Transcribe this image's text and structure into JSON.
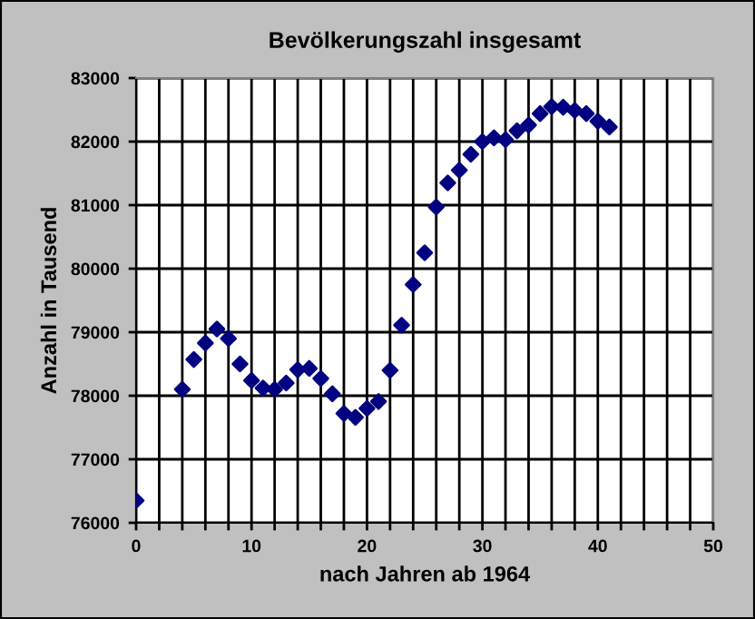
{
  "chart_data": {
    "type": "scatter",
    "title": "Bevölkerungszahl insgesamt",
    "xlabel": "nach Jahren ab 1964",
    "ylabel": "Anzahl in Tausend",
    "x": [
      0,
      4,
      5,
      6,
      7,
      8,
      9,
      10,
      11,
      12,
      13,
      14,
      15,
      16,
      17,
      18,
      19,
      20,
      21,
      22,
      23,
      24,
      25,
      26,
      27,
      28,
      29,
      30,
      31,
      32,
      33,
      34,
      35,
      36,
      37,
      38,
      39,
      40,
      41
    ],
    "series": [
      {
        "color": "#000080",
        "values": [
          76350,
          78100,
          78570,
          78830,
          79050,
          78900,
          78500,
          78240,
          78120,
          78100,
          78200,
          78410,
          78430,
          78270,
          78030,
          77720,
          77660,
          77800,
          77910,
          78400,
          79110,
          79750,
          80250,
          80970,
          81350,
          81550,
          81800,
          82000,
          82060,
          82030,
          82170,
          82260,
          82440,
          82550,
          82540,
          82490,
          82440,
          82320,
          82230
        ]
      }
    ],
    "xlim": [
      0,
      50
    ],
    "ylim": [
      76000,
      83000
    ],
    "xticks": [
      0,
      {
        "value": 2,
        "label": null
      },
      {
        "value": 4,
        "label": null
      },
      {
        "value": 6,
        "label": null
      },
      {
        "value": 8,
        "label": null
      },
      10,
      {
        "value": 12,
        "label": null
      },
      {
        "value": 14,
        "label": null
      },
      {
        "value": 16,
        "label": null
      },
      {
        "value": 18,
        "label": null
      },
      20,
      {
        "value": 22,
        "label": null
      },
      {
        "value": 24,
        "label": null
      },
      {
        "value": 26,
        "label": null
      },
      {
        "value": 28,
        "label": null
      },
      30,
      {
        "value": 32,
        "label": null
      },
      {
        "value": 34,
        "label": null
      },
      {
        "value": 36,
        "label": null
      },
      {
        "value": 38,
        "label": null
      },
      40,
      {
        "value": 42,
        "label": null
      },
      {
        "value": 44,
        "label": null
      },
      {
        "value": 46,
        "label": null
      },
      {
        "value": 48,
        "label": null
      },
      50
    ],
    "yticks": [
      76000,
      77000,
      78000,
      79000,
      80000,
      81000,
      82000,
      83000
    ],
    "grid": true,
    "marker": "diamond"
  }
}
